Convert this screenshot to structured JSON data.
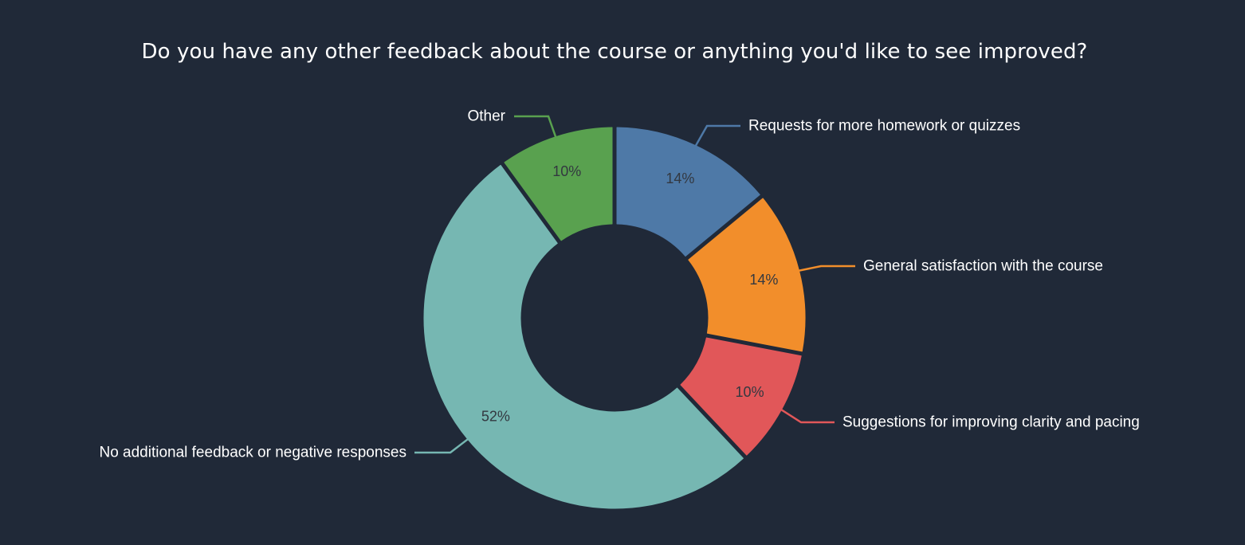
{
  "chart_data": {
    "type": "pie",
    "donut": true,
    "title": "Do you have any other feedback about the course or anything you'd like to see improved?",
    "slices": [
      {
        "label": "Requests for more homework or quizzes",
        "value": 14,
        "value_label": "14%",
        "color": "#4e79a7"
      },
      {
        "label": "General satisfaction with the course",
        "value": 14,
        "value_label": "14%",
        "color": "#f28e2b"
      },
      {
        "label": "Suggestions for improving clarity and pacing",
        "value": 10,
        "value_label": "10%",
        "color": "#e15759"
      },
      {
        "label": "No additional feedback or negative responses",
        "value": 52,
        "value_label": "52%",
        "color": "#76b7b2"
      },
      {
        "label": "Other",
        "value": 10,
        "value_label": "10%",
        "color": "#59a14f"
      }
    ],
    "legend": "none"
  }
}
